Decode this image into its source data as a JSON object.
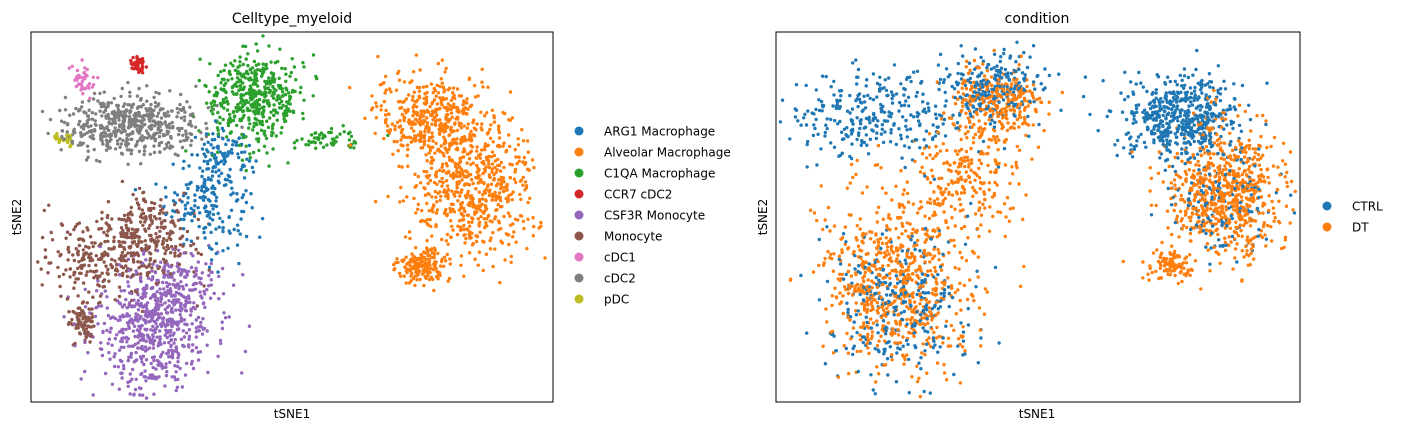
{
  "chart_data": [
    {
      "type": "scatter",
      "title": "Celltype_myeloid",
      "xlabel": "tSNE1",
      "ylabel": "tSNE2",
      "grid": false,
      "legend_position": "right",
      "xlim": [
        0,
        100
      ],
      "ylim": [
        0,
        100
      ],
      "series": [
        {
          "name": "ARG1 Macrophage",
          "color": "#1f77b4",
          "n": 260,
          "clusters": [
            {
              "cx": 34,
              "cy": 55,
              "sx": 4.0,
              "sy": 6.5,
              "w": 0.7
            },
            {
              "cx": 37,
              "cy": 67,
              "sx": 3.0,
              "sy": 3.0,
              "w": 0.3
            }
          ]
        },
        {
          "name": "Alveolar Macrophage",
          "color": "#ff7f0e",
          "n": 1150,
          "clusters": [
            {
              "cx": 77,
              "cy": 77,
              "sx": 5.5,
              "sy": 6.0,
              "w": 0.35
            },
            {
              "cx": 85,
              "cy": 57,
              "sx": 6.0,
              "sy": 9.0,
              "w": 0.5
            },
            {
              "cx": 75,
              "cy": 37,
              "sx": 2.2,
              "sy": 2.2,
              "w": 0.15
            }
          ]
        },
        {
          "name": "C1QA Macrophage",
          "color": "#2ca02c",
          "n": 520,
          "clusters": [
            {
              "cx": 43,
              "cy": 82,
              "sx": 4.5,
              "sy": 6.0,
              "w": 0.9
            },
            {
              "cx": 57,
              "cy": 71,
              "sx": 3.0,
              "sy": 1.5,
              "w": 0.1
            }
          ]
        },
        {
          "name": "CCR7 cDC2",
          "color": "#d62728",
          "n": 45,
          "clusters": [
            {
              "cx": 20.5,
              "cy": 91,
              "sx": 0.9,
              "sy": 1.0,
              "w": 1.0
            }
          ]
        },
        {
          "name": "CSF3R Monocyte",
          "color": "#9467bd",
          "n": 720,
          "clusters": [
            {
              "cx": 23,
              "cy": 20,
              "sx": 5.5,
              "sy": 9.0,
              "w": 0.8
            },
            {
              "cx": 29,
              "cy": 30,
              "sx": 4.0,
              "sy": 5.0,
              "w": 0.2
            }
          ]
        },
        {
          "name": "Monocyte",
          "color": "#8c564b",
          "n": 560,
          "clusters": [
            {
              "cx": 15,
              "cy": 40,
              "sx": 7.0,
              "sy": 4.5,
              "w": 0.55
            },
            {
              "cx": 23,
              "cy": 47,
              "sx": 4.0,
              "sy": 5.0,
              "w": 0.3
            },
            {
              "cx": 10,
              "cy": 22,
              "sx": 1.5,
              "sy": 3.0,
              "w": 0.15
            }
          ]
        },
        {
          "name": "cDC1",
          "color": "#e377c2",
          "n": 40,
          "clusters": [
            {
              "cx": 10,
              "cy": 87,
              "sx": 1.2,
              "sy": 1.8,
              "w": 1.0
            }
          ]
        },
        {
          "name": "cDC2",
          "color": "#7f7f7f",
          "n": 520,
          "clusters": [
            {
              "cx": 19,
              "cy": 75,
              "sx": 6.5,
              "sy": 4.0,
              "w": 1.0
            }
          ]
        },
        {
          "name": "pDC",
          "color": "#bcbd22",
          "n": 25,
          "clusters": [
            {
              "cx": 6,
              "cy": 71,
              "sx": 1.0,
              "sy": 0.8,
              "w": 1.0
            }
          ]
        }
      ]
    },
    {
      "type": "scatter",
      "title": "condition",
      "xlabel": "tSNE1",
      "ylabel": "tSNE2",
      "grid": false,
      "legend_position": "right",
      "xlim": [
        0,
        100
      ],
      "ylim": [
        0,
        100
      ],
      "series": [
        {
          "name": "CTRL",
          "color": "#1f77b4",
          "n": 1500,
          "clusters": [
            {
              "cx": 77,
              "cy": 77,
              "sx": 5.5,
              "sy": 5.5,
              "w": 0.35
            },
            {
              "cx": 42,
              "cy": 85,
              "sx": 4.5,
              "sy": 4.5,
              "w": 0.15
            },
            {
              "cx": 20,
              "cy": 78,
              "sx": 9.0,
              "sy": 6.0,
              "w": 0.2
            },
            {
              "cx": 23,
              "cy": 25,
              "sx": 7.0,
              "sy": 11.0,
              "w": 0.2
            },
            {
              "cx": 85,
              "cy": 55,
              "sx": 5.0,
              "sy": 8.0,
              "w": 0.1
            }
          ]
        },
        {
          "name": "DT",
          "color": "#ff7f0e",
          "n": 2000,
          "clusters": [
            {
              "cx": 86,
              "cy": 57,
              "sx": 5.5,
              "sy": 9.0,
              "w": 0.35
            },
            {
              "cx": 75,
              "cy": 37,
              "sx": 2.2,
              "sy": 2.2,
              "w": 0.05
            },
            {
              "cx": 23,
              "cy": 32,
              "sx": 7.0,
              "sy": 12.0,
              "w": 0.35
            },
            {
              "cx": 36,
              "cy": 60,
              "sx": 5.0,
              "sy": 6.0,
              "w": 0.1
            },
            {
              "cx": 42,
              "cy": 80,
              "sx": 4.0,
              "sy": 5.0,
              "w": 0.15
            }
          ]
        }
      ]
    }
  ]
}
